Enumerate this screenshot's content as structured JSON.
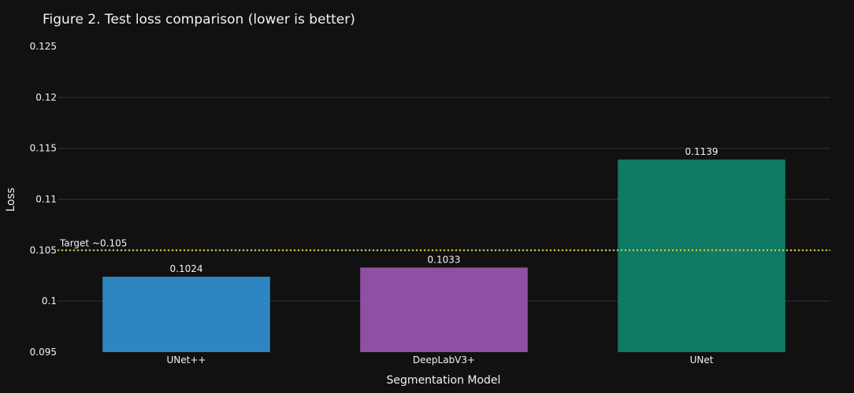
{
  "chart_data": {
    "type": "bar",
    "title": "Figure 2. Test loss comparison (lower is better)",
    "xlabel": "Segmentation Model",
    "ylabel": "Loss",
    "categories": [
      "UNet++",
      "DeepLabV3+",
      "UNet"
    ],
    "values": [
      0.1024,
      0.1033,
      0.1139
    ],
    "value_labels": [
      "0.1024",
      "0.1033",
      "0.1139"
    ],
    "colors": [
      "#2e86c1",
      "#8e50a2",
      "#117a65"
    ],
    "ylim": [
      0.095,
      0.125
    ],
    "yticks": [
      0.095,
      0.1,
      0.105,
      0.11,
      0.115,
      0.12,
      0.125
    ],
    "ytick_labels": [
      "0.095",
      "0.1",
      "0.105",
      "0.11",
      "0.115",
      "0.12",
      "0.125"
    ],
    "grid": true,
    "reference_line": {
      "value": 0.105,
      "label": "Target ~0.105",
      "color": "#f4d03f",
      "style": "dotted"
    }
  }
}
